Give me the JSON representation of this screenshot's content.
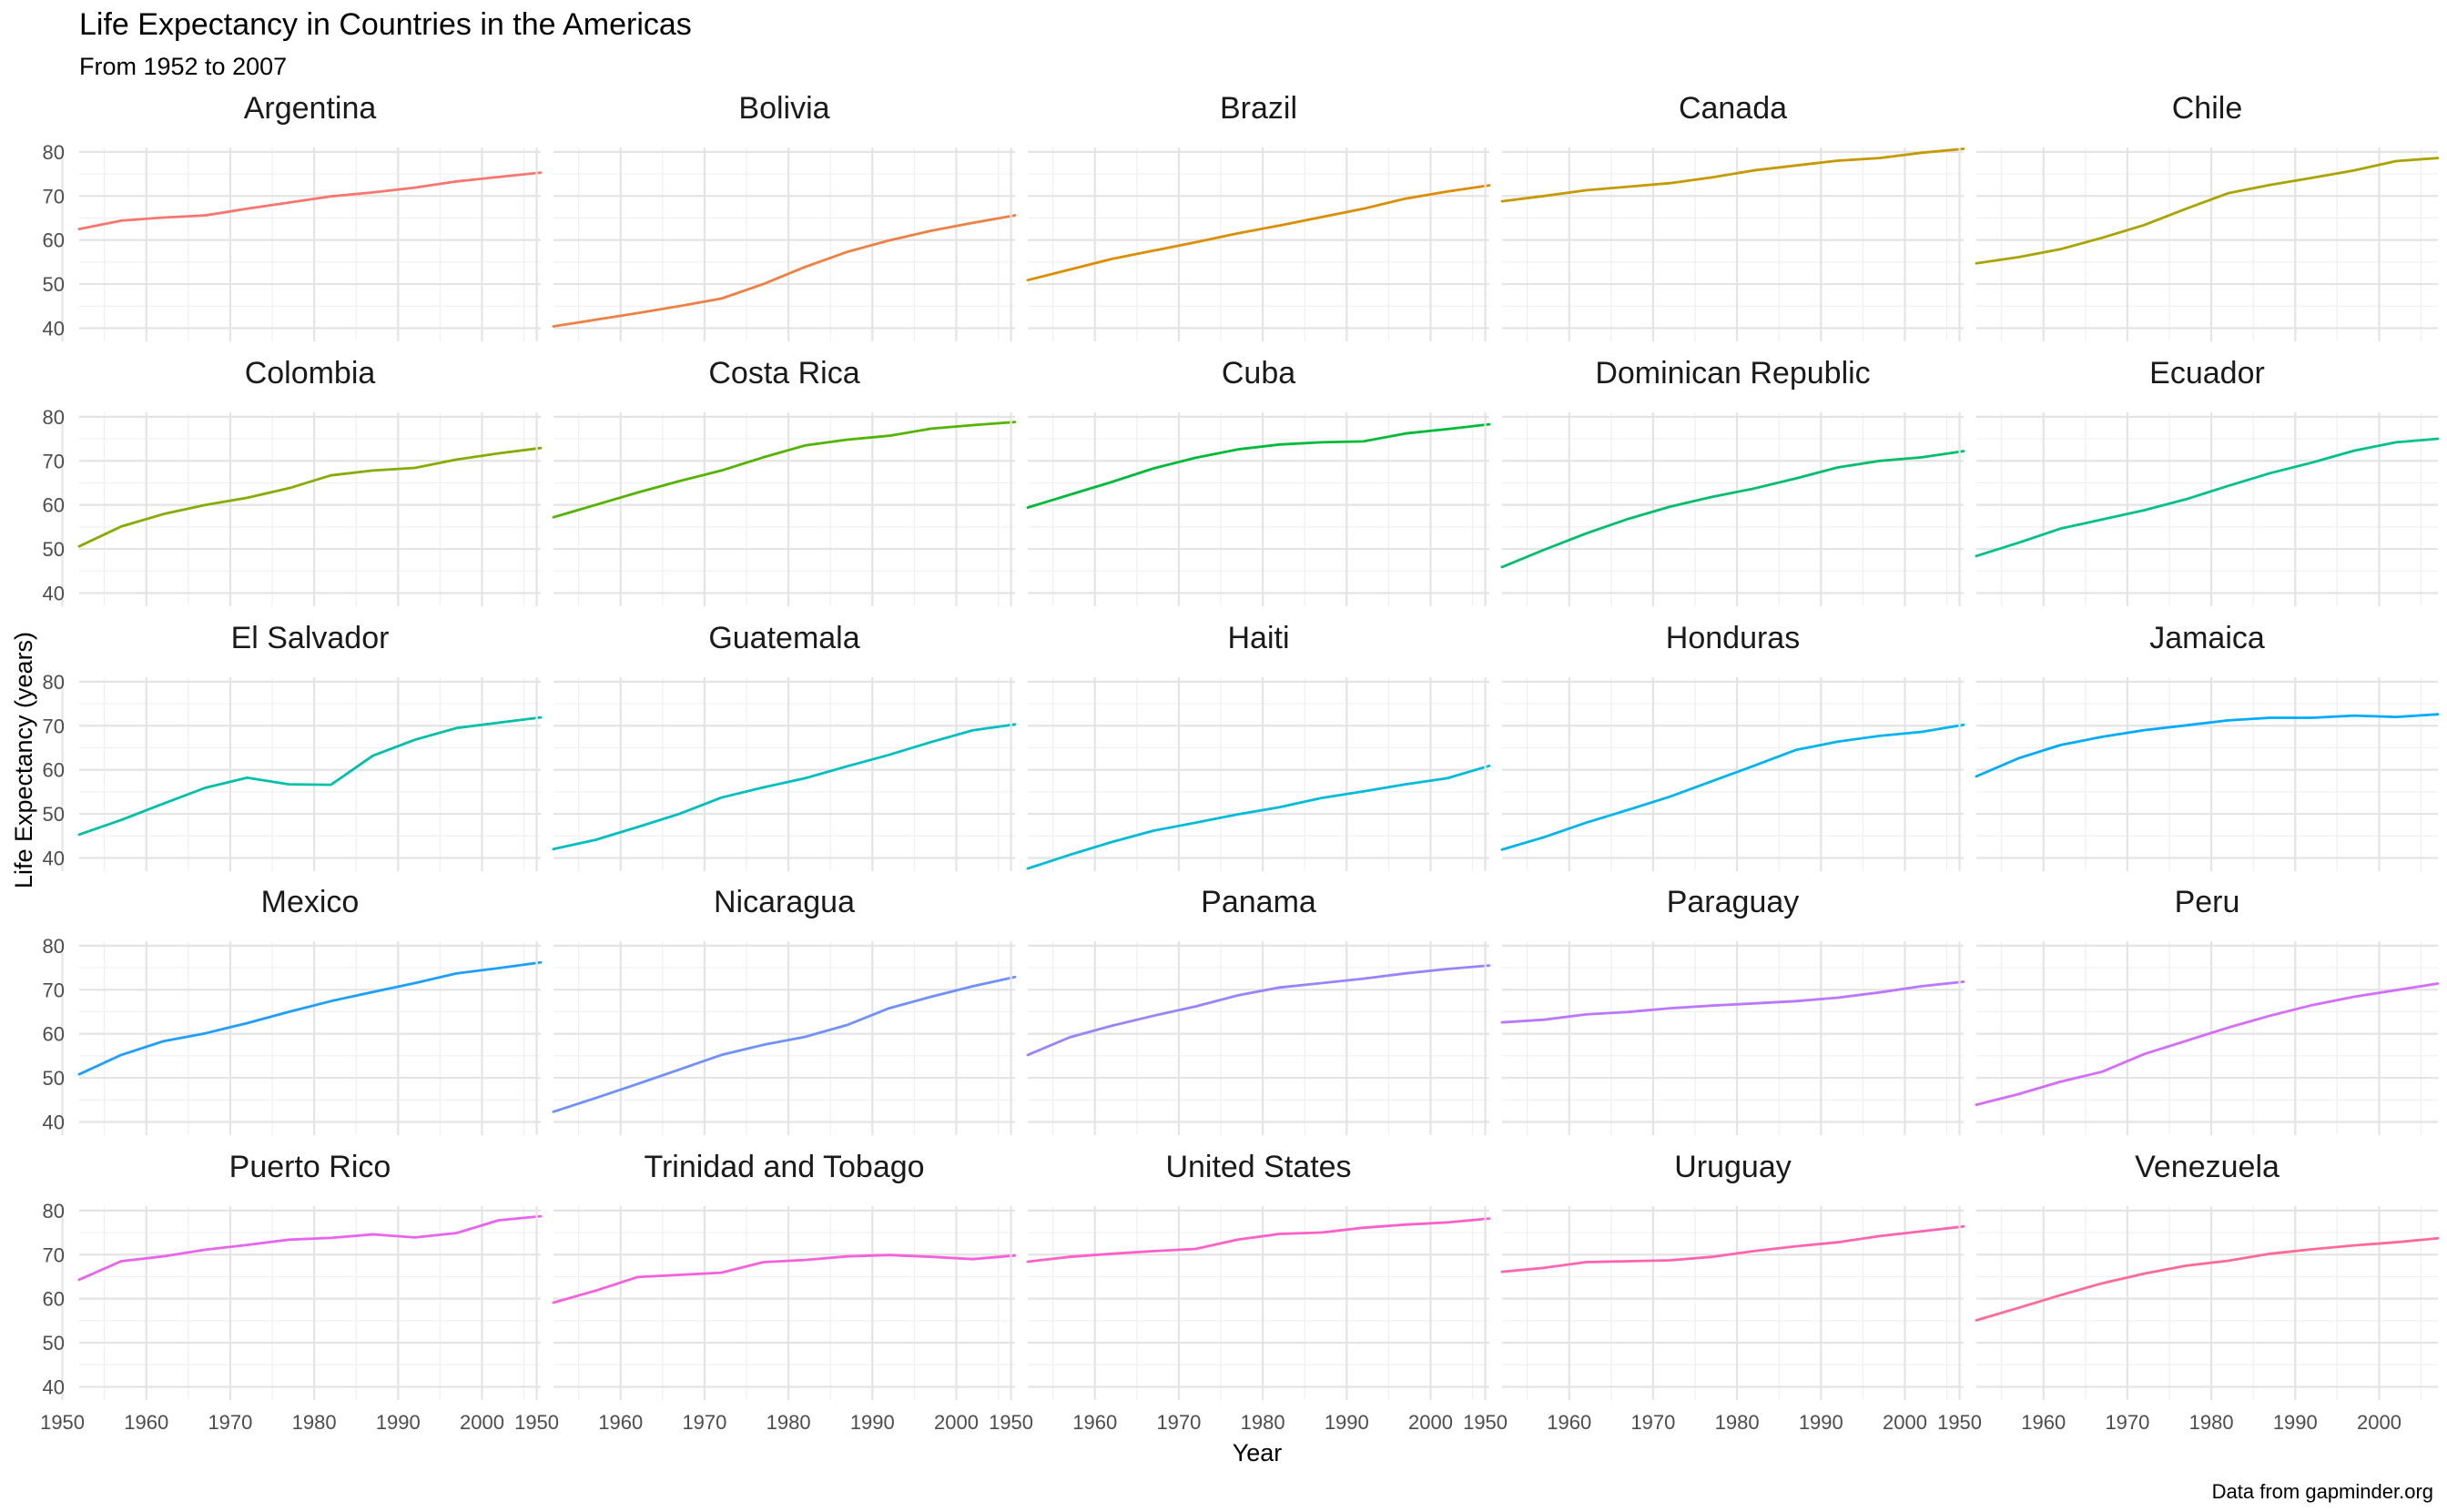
{
  "chart_data": {
    "type": "line",
    "title": "Life Expectancy in Countries in the Americas",
    "subtitle": "From 1952 to 2007",
    "xlabel": "Year",
    "ylabel": "Life Expectancy (years)",
    "caption": "Data from gapminder.org",
    "xlim": [
      1952,
      2007
    ],
    "ylim": [
      37,
      81
    ],
    "x_ticks": [
      1950,
      1960,
      1970,
      1980,
      1990,
      2000
    ],
    "y_ticks": [
      40,
      50,
      60,
      70,
      80
    ],
    "grid": true,
    "legend": "none",
    "x": [
      1952,
      1957,
      1962,
      1967,
      1972,
      1977,
      1982,
      1987,
      1992,
      1997,
      2002,
      2007
    ],
    "series": [
      {
        "name": "Argentina",
        "color": "#F8766D",
        "values": [
          62.5,
          64.4,
          65.1,
          65.6,
          67.1,
          68.5,
          69.9,
          70.8,
          71.9,
          73.3,
          74.3,
          75.3
        ]
      },
      {
        "name": "Bolivia",
        "color": "#EE8044",
        "values": [
          40.4,
          41.9,
          43.4,
          45.0,
          46.7,
          50.0,
          53.9,
          57.3,
          59.9,
          62.1,
          63.9,
          65.6
        ]
      },
      {
        "name": "Brazil",
        "color": "#DC8D00",
        "values": [
          50.9,
          53.3,
          55.7,
          57.6,
          59.5,
          61.5,
          63.3,
          65.2,
          67.1,
          69.4,
          71.0,
          72.4
        ]
      },
      {
        "name": "Canada",
        "color": "#C59900",
        "values": [
          68.8,
          70.0,
          71.3,
          72.1,
          72.9,
          74.2,
          75.8,
          76.9,
          78.0,
          78.6,
          79.8,
          80.7
        ]
      },
      {
        "name": "Chile",
        "color": "#A9A400",
        "values": [
          54.7,
          56.1,
          57.9,
          60.5,
          63.4,
          67.1,
          70.6,
          72.5,
          74.1,
          75.8,
          77.9,
          78.6
        ]
      },
      {
        "name": "Colombia",
        "color": "#85AD00",
        "values": [
          50.6,
          55.1,
          57.9,
          60.0,
          61.6,
          63.8,
          66.7,
          67.8,
          68.4,
          70.3,
          71.7,
          72.9
        ]
      },
      {
        "name": "Costa Rica",
        "color": "#53B400",
        "values": [
          57.2,
          60.0,
          62.8,
          65.4,
          67.8,
          70.8,
          73.5,
          74.8,
          75.7,
          77.3,
          78.1,
          78.8
        ]
      },
      {
        "name": "Cuba",
        "color": "#00BA38",
        "values": [
          59.4,
          62.3,
          65.2,
          68.3,
          70.7,
          72.6,
          73.7,
          74.2,
          74.4,
          76.2,
          77.2,
          78.3
        ]
      },
      {
        "name": "Dominican Republic",
        "color": "#00BE6C",
        "values": [
          45.9,
          49.8,
          53.5,
          56.8,
          59.6,
          61.8,
          63.7,
          66.0,
          68.5,
          70.0,
          70.8,
          72.2
        ]
      },
      {
        "name": "Ecuador",
        "color": "#00C08B",
        "values": [
          48.4,
          51.4,
          54.6,
          56.7,
          58.8,
          61.3,
          64.3,
          67.2,
          69.6,
          72.3,
          74.2,
          75.0
        ]
      },
      {
        "name": "El Salvador",
        "color": "#00C0A7",
        "values": [
          45.3,
          48.6,
          52.3,
          55.9,
          58.2,
          56.7,
          56.6,
          63.2,
          66.8,
          69.5,
          70.7,
          71.9
        ]
      },
      {
        "name": "Guatemala",
        "color": "#00BFC0",
        "values": [
          42.0,
          44.1,
          47.0,
          50.0,
          53.7,
          56.0,
          58.1,
          60.8,
          63.4,
          66.3,
          68.98,
          70.3
        ]
      },
      {
        "name": "Haiti",
        "color": "#00BCD8",
        "values": [
          37.6,
          40.7,
          43.6,
          46.2,
          48.0,
          49.9,
          51.5,
          53.6,
          55.1,
          56.7,
          58.1,
          60.9
        ]
      },
      {
        "name": "Honduras",
        "color": "#00B5EE",
        "values": [
          41.9,
          44.7,
          48.0,
          50.9,
          53.9,
          57.4,
          60.9,
          64.5,
          66.4,
          67.7,
          68.6,
          70.2
        ]
      },
      {
        "name": "Jamaica",
        "color": "#00ABFD",
        "values": [
          58.5,
          62.6,
          65.6,
          67.5,
          69.0,
          70.1,
          71.2,
          71.8,
          71.8,
          72.3,
          72.0,
          72.6
        ]
      },
      {
        "name": "Mexico",
        "color": "#1E9EFF",
        "values": [
          50.8,
          55.2,
          58.3,
          60.1,
          62.4,
          65.0,
          67.4,
          69.5,
          71.5,
          73.7,
          74.9,
          76.2
        ]
      },
      {
        "name": "Nicaragua",
        "color": "#6F90FF",
        "values": [
          42.3,
          45.4,
          48.6,
          51.9,
          55.2,
          57.5,
          59.3,
          62.0,
          65.8,
          68.4,
          70.8,
          72.9
        ]
      },
      {
        "name": "Panama",
        "color": "#9A83FF",
        "values": [
          55.2,
          59.2,
          61.8,
          64.1,
          66.2,
          68.7,
          70.5,
          71.5,
          72.5,
          73.7,
          74.7,
          75.5
        ]
      },
      {
        "name": "Paraguay",
        "color": "#BA77FF",
        "values": [
          62.6,
          63.2,
          64.4,
          64.95,
          65.8,
          66.4,
          66.9,
          67.4,
          68.2,
          69.4,
          70.8,
          71.8
        ]
      },
      {
        "name": "Peru",
        "color": "#D46DF9",
        "values": [
          43.9,
          46.3,
          49.1,
          51.4,
          55.4,
          58.4,
          61.4,
          64.1,
          66.5,
          68.4,
          69.9,
          71.4
        ]
      },
      {
        "name": "Puerto Rico",
        "color": "#E765EE",
        "values": [
          64.3,
          68.5,
          69.6,
          71.1,
          72.2,
          73.4,
          73.8,
          74.6,
          73.9,
          74.9,
          77.8,
          78.7
        ]
      },
      {
        "name": "Trinidad and Tobago",
        "color": "#F561DD",
        "values": [
          59.1,
          61.8,
          64.9,
          65.4,
          65.9,
          68.3,
          68.8,
          69.6,
          69.9,
          69.5,
          68.98,
          69.8
        ]
      },
      {
        "name": "United States",
        "color": "#FD61C9",
        "values": [
          68.4,
          69.5,
          70.2,
          70.8,
          71.3,
          73.4,
          74.7,
          75.0,
          76.1,
          76.8,
          77.3,
          78.2
        ]
      },
      {
        "name": "Uruguay",
        "color": "#FF64B1",
        "values": [
          66.1,
          67.0,
          68.3,
          68.5,
          68.7,
          69.5,
          70.8,
          71.9,
          72.8,
          74.2,
          75.3,
          76.4
        ]
      },
      {
        "name": "Venezuela",
        "color": "#FF6A98",
        "values": [
          55.1,
          57.9,
          60.8,
          63.5,
          65.7,
          67.5,
          68.6,
          70.2,
          71.2,
          72.1,
          72.8,
          73.7
        ]
      }
    ]
  }
}
